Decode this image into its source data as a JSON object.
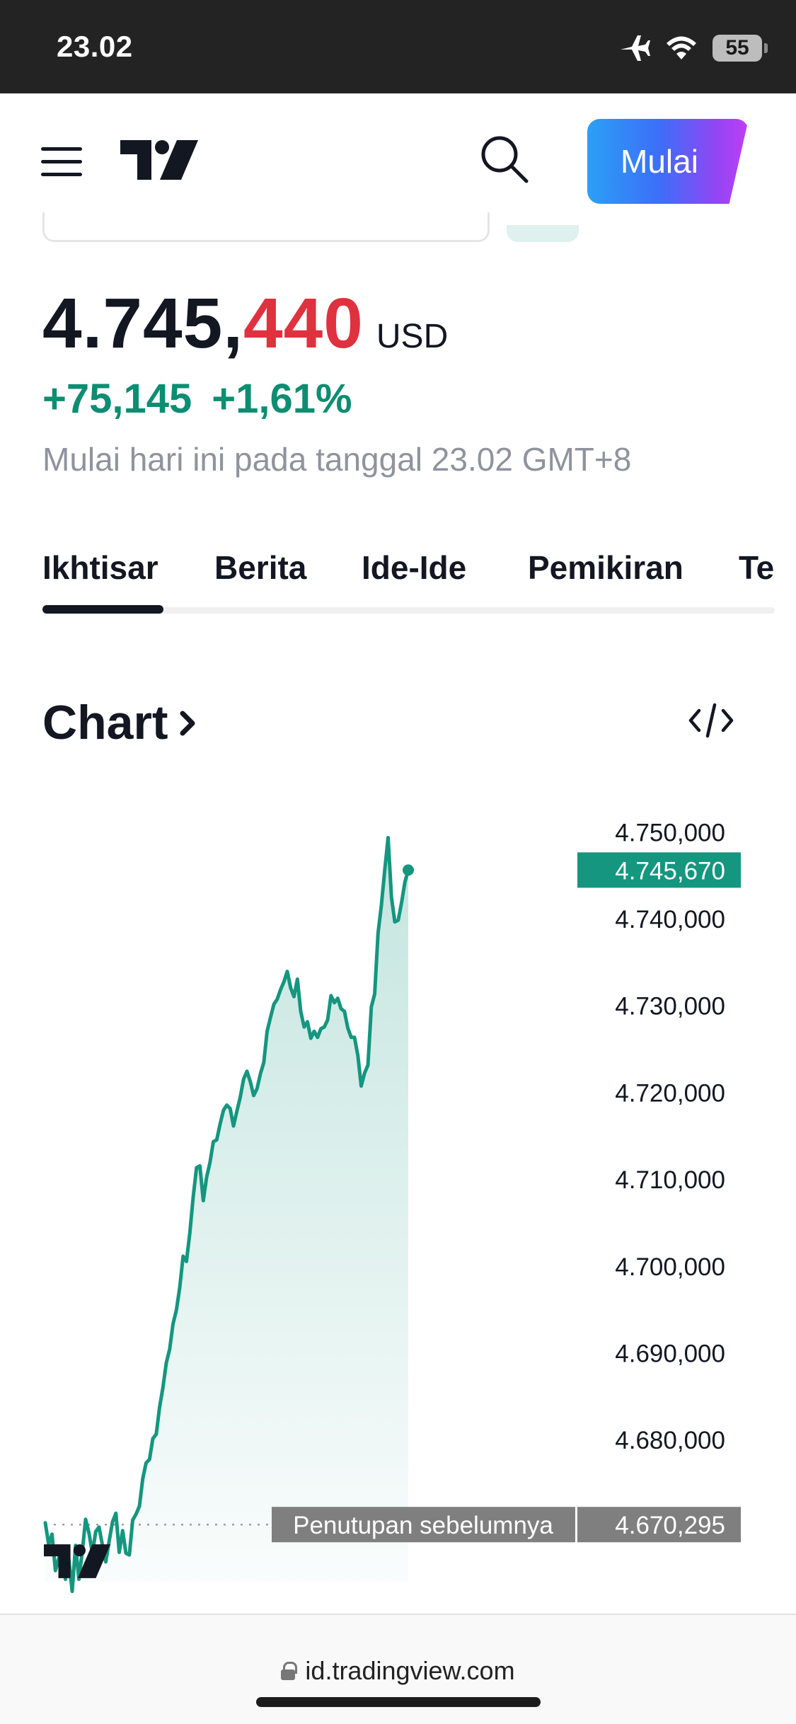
{
  "status_bar": {
    "time": "23.02",
    "battery": "55"
  },
  "header": {
    "cta_label": "Mulai"
  },
  "quote": {
    "price_main": "4.745,",
    "price_decimals": "440",
    "currency": "USD",
    "change_abs": "+75,145",
    "change_pct": "+1,61%",
    "session_note": "Mulai hari ini pada tanggal 23.02 GMT+8"
  },
  "tabs": [
    {
      "label": "Ikhtisar",
      "active": true
    },
    {
      "label": "Berita",
      "active": false
    },
    {
      "label": "Ide-Ide",
      "active": false
    },
    {
      "label": "Pemikiran",
      "active": false
    },
    {
      "label": "Te",
      "active": false
    }
  ],
  "chart_section": {
    "title": "Chart"
  },
  "chart_data": {
    "type": "area",
    "y_tick_labels": [
      "4.750,000",
      "4.740,000",
      "4.730,000",
      "4.720,000",
      "4.710,000",
      "4.700,000",
      "4.690,000",
      "4.680,000"
    ],
    "ylim": [
      4662,
      4751
    ],
    "series": [
      {
        "color": "#14967f",
        "values": [
          4670.5,
          4668.0,
          4669.2,
          4665.0,
          4666.4,
          4667.6,
          4664.0,
          4666.3,
          4662.6,
          4667.9,
          4664.0,
          4667.2,
          4670.9,
          4669.3,
          4667.0,
          4669.5,
          4670.0,
          4667.9,
          4666.0,
          4668.4,
          4670.6,
          4671.6,
          4667.1,
          4669.6,
          4667.0,
          4666.8,
          4670.8,
          4671.5,
          4672.4,
          4675.6,
          4677.4,
          4677.8,
          4680.2,
          4680.7,
          4683.8,
          4686.1,
          4688.9,
          4690.5,
          4693.4,
          4695.0,
          4697.6,
          4701.2,
          4700.6,
          4703.9,
          4708.0,
          4711.4,
          4711.6,
          4707.6,
          4710.3,
          4712.0,
          4714.4,
          4714.6,
          4716.4,
          4718.0,
          4718.6,
          4718.2,
          4716.2,
          4717.9,
          4719.5,
          4721.6,
          4722.5,
          4721.3,
          4719.7,
          4720.5,
          4722.2,
          4723.5,
          4727.1,
          4728.7,
          4730.2,
          4730.8,
          4731.9,
          4732.8,
          4734.0,
          4732.1,
          4731.1,
          4733.1,
          4729.4,
          4727.6,
          4728.2,
          4726.3,
          4727.1,
          4726.4,
          4727.4,
          4727.6,
          4728.4,
          4731.2,
          4730.4,
          4730.9,
          4729.7,
          4729.4,
          4727.5,
          4726.4,
          4726.4,
          4724.3,
          4720.8,
          4722.3,
          4723.2,
          4729.9,
          4731.4,
          4738.4,
          4741.6,
          4745.7,
          4749.4,
          4742.5,
          4739.7,
          4739.9,
          4741.9,
          4744.3,
          4745.67
        ]
      }
    ],
    "current_price_label": "4.745,670",
    "previous_close": 4670.295,
    "previous_close_label": "Penutupan sebelumnya",
    "previous_close_value_label": "4.670,295",
    "grid": false
  },
  "footer": {
    "url": "id.tradingview.com"
  }
}
